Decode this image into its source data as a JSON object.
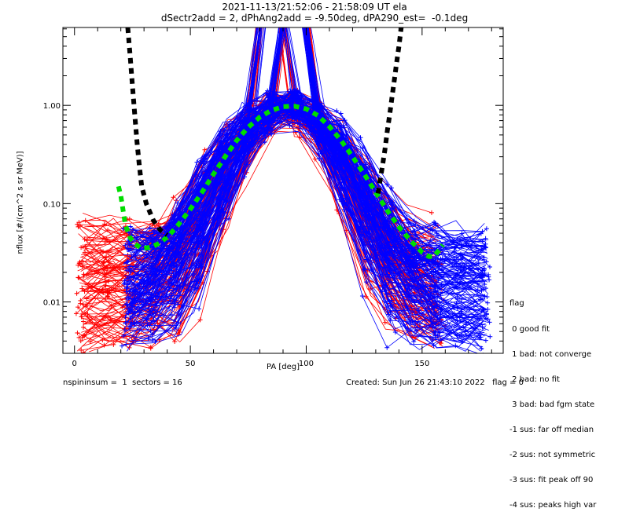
{
  "header": {
    "title_line1": "2021-11-13/21:52:06 - 21:58:09 UT ela",
    "title_line2": "dSectr2add = 2, dPhAng2add = -9.50deg, dPA290_est=  -0.1deg"
  },
  "footer": {
    "left": "nspininsum =  1  sectors = 16",
    "right": "Created: Sun Jun 26 21:43:10 2022   flag = 0"
  },
  "legend": {
    "title": "flag",
    "entries": [
      " 0 good fit",
      " 1 bad: not converge",
      " 2 bad: no fit",
      " 3 bad: bad fgm state",
      "-1 sus: far off median",
      "-2 sus: not symmetric",
      "-3 sus: fit peak off 90",
      "-4 sus: peaks high var"
    ]
  },
  "colors": {
    "red_series": "#ff0000",
    "blue_series": "#0000ff",
    "fit_curve": "#00dd00",
    "model_curve": "#000000",
    "axes": "#000000"
  },
  "chart_data": {
    "type": "line",
    "title": "2021-11-13/21:52:06 - 21:58:09 UT ela",
    "subtitle": "dSectr2add = 2, dPhAng2add = -9.50deg, dPA290_est=  -0.1deg",
    "xlabel": "PA [deg]",
    "ylabel": "nflux [#/(cm^2 s sr MeV)]",
    "xlim": [
      -5,
      185
    ],
    "ylim": [
      0.003,
      6.2
    ],
    "yscale": "log",
    "x_ticks": [
      0,
      50,
      100,
      150
    ],
    "x_tick_labels": [
      "0",
      "50",
      "100",
      "150"
    ],
    "x_minor_step": 10,
    "y_ticks": [
      1.0,
      0.1,
      0.01
    ],
    "y_tick_labels": [
      "1.00",
      "0.10",
      "0.01"
    ],
    "grid": false,
    "series": [
      {
        "name": "measured pitch-angle spectra (red, one set)",
        "color": "red",
        "style": "line+plus-markers",
        "count": 120,
        "pa_range": [
          2,
          158
        ],
        "peak_flux_range": [
          0.6,
          6
        ],
        "edge_flux_range": [
          0.004,
          0.06
        ]
      },
      {
        "name": "measured pitch-angle spectra (blue, other set)",
        "color": "blue",
        "style": "line+plus-markers",
        "count": 160,
        "pa_range": [
          22,
          178
        ],
        "peak_flux_range": [
          0.7,
          6
        ],
        "edge_flux_range": [
          0.004,
          0.05
        ]
      },
      {
        "name": "fit (green dashed)",
        "color": "green",
        "style": "thick-dashed",
        "x": [
          19,
          20,
          21,
          22,
          24,
          26,
          29,
          33,
          37,
          41,
          45,
          50,
          55,
          60,
          65,
          70,
          75,
          80,
          85,
          90,
          95,
          100,
          105,
          110,
          115,
          120,
          125,
          130,
          135,
          140,
          145,
          150,
          153,
          155,
          157,
          159
        ],
        "y": [
          0.15,
          0.12,
          0.085,
          0.06,
          0.045,
          0.039,
          0.035,
          0.036,
          0.04,
          0.048,
          0.062,
          0.088,
          0.13,
          0.2,
          0.3,
          0.44,
          0.6,
          0.76,
          0.89,
          0.97,
          0.98,
          0.92,
          0.79,
          0.61,
          0.44,
          0.3,
          0.2,
          0.13,
          0.085,
          0.058,
          0.042,
          0.032,
          0.029,
          0.029,
          0.033,
          0.038
        ]
      },
      {
        "name": "loss-cone model (black dashed, left)",
        "color": "black",
        "style": "thick-dashed",
        "x": [
          23,
          24,
          25,
          26,
          27,
          28,
          29,
          31,
          34,
          37,
          40
        ],
        "y": [
          6.2,
          3.2,
          1.6,
          0.8,
          0.42,
          0.24,
          0.15,
          0.1,
          0.068,
          0.054,
          0.048
        ]
      },
      {
        "name": "loss-cone model (black dashed, right)",
        "color": "black",
        "style": "thick-dashed",
        "x": [
          131,
          132,
          133,
          134,
          135,
          136,
          137,
          138,
          139,
          140,
          141
        ],
        "y": [
          0.127,
          0.18,
          0.25,
          0.36,
          0.55,
          0.8,
          1.2,
          1.8,
          2.7,
          4.0,
          6.2
        ]
      }
    ]
  }
}
